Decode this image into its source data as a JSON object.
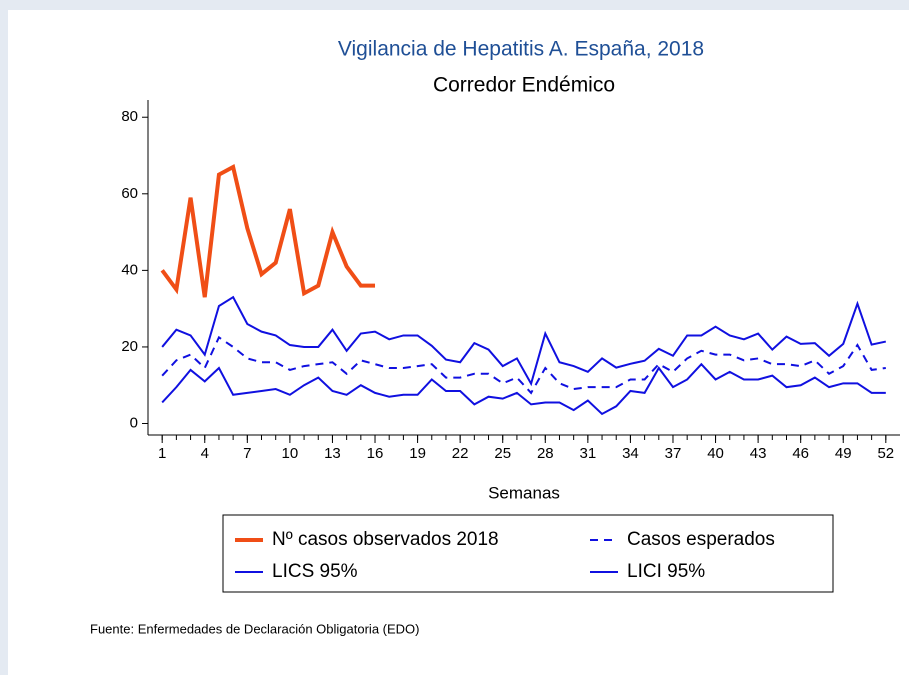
{
  "chart_data": {
    "type": "line",
    "title": "Vigilancia de Hepatitis A. España, 2018",
    "subtitle": "Corredor Endémico",
    "x_label": "Semanas",
    "source": "Fuente: Enfermedades de Declaración Obligatoria (EDO)",
    "x": [
      1,
      2,
      3,
      4,
      5,
      6,
      7,
      8,
      9,
      10,
      11,
      12,
      13,
      14,
      15,
      16,
      17,
      18,
      19,
      20,
      21,
      22,
      23,
      24,
      25,
      26,
      27,
      28,
      29,
      30,
      31,
      32,
      33,
      34,
      35,
      36,
      37,
      38,
      39,
      40,
      41,
      42,
      43,
      44,
      45,
      46,
      47,
      48,
      49,
      50,
      51,
      52
    ],
    "xlim": [
      0,
      53
    ],
    "xticks": [
      1,
      4,
      7,
      10,
      13,
      16,
      19,
      22,
      25,
      28,
      31,
      34,
      37,
      40,
      43,
      46,
      49,
      52
    ],
    "ylim": [
      -3,
      84.5
    ],
    "yticks": [
      0,
      20,
      40,
      60,
      80
    ],
    "series": [
      {
        "name": "Nº casos observados 2018",
        "color": "#f04e16",
        "width": 4,
        "dashed": false,
        "values": [
          40,
          35,
          59,
          33,
          65,
          67,
          51,
          39,
          42,
          56,
          34,
          36,
          50,
          41,
          36,
          36,
          null,
          null,
          null,
          null,
          null,
          null,
          null,
          null,
          null,
          null,
          null,
          null,
          null,
          null,
          null,
          null,
          null,
          null,
          null,
          null,
          null,
          null,
          null,
          null,
          null,
          null,
          null,
          null,
          null,
          null,
          null,
          null,
          null,
          null,
          null,
          null
        ]
      },
      {
        "name": "Casos esperados",
        "color": "#1010e0",
        "width": 2,
        "dashed": true,
        "values": [
          12.5,
          16.5,
          18,
          14.5,
          22.5,
          20,
          17,
          16,
          16,
          14,
          15,
          15.5,
          16,
          13,
          16.5,
          15.5,
          14.5,
          14.5,
          15,
          15.5,
          12,
          12,
          13,
          13,
          10.5,
          12,
          8,
          14.5,
          10.5,
          9,
          9.5,
          9.5,
          9.5,
          11.5,
          11.5,
          15.5,
          13.5,
          17,
          19,
          18,
          18,
          16.5,
          17,
          15.5,
          15.5,
          15,
          16.5,
          13,
          15,
          20.5,
          14,
          14.5
        ]
      },
      {
        "name": "LICS 95%",
        "color": "#1010e0",
        "width": 2,
        "dashed": false,
        "values": [
          20,
          24.5,
          23,
          18,
          30.7,
          33,
          26,
          24,
          23,
          20.5,
          20,
          20,
          24.5,
          19,
          23.5,
          24,
          22,
          23,
          23,
          20.3,
          16.7,
          16,
          21,
          19.3,
          15,
          17,
          10.4,
          23.5,
          16,
          15,
          13.5,
          17,
          14.6,
          15.6,
          16.4,
          19.5,
          17.7,
          23,
          23,
          25.3,
          23,
          22,
          23.5,
          19.3,
          22.7,
          20.8,
          21,
          17.7,
          20.8,
          31.3,
          20.6,
          21.4
        ]
      },
      {
        "name": "LICI 95%",
        "color": "#1010e0",
        "width": 2,
        "dashed": false,
        "values": [
          5.5,
          9.5,
          14,
          11,
          14.5,
          7.5,
          8,
          8.5,
          9,
          7.5,
          10,
          12,
          8.5,
          7.5,
          10,
          8,
          7,
          7.5,
          7.5,
          11.5,
          8.5,
          8.5,
          5,
          7,
          6.5,
          8,
          5,
          5.5,
          5.5,
          3.5,
          6,
          2.5,
          4.5,
          8.5,
          8,
          14.5,
          9.5,
          11.5,
          15.5,
          11.5,
          13.5,
          11.5,
          11.5,
          12.5,
          9.5,
          10,
          12,
          9.5,
          10.5,
          10.5,
          8,
          8
        ]
      }
    ]
  }
}
